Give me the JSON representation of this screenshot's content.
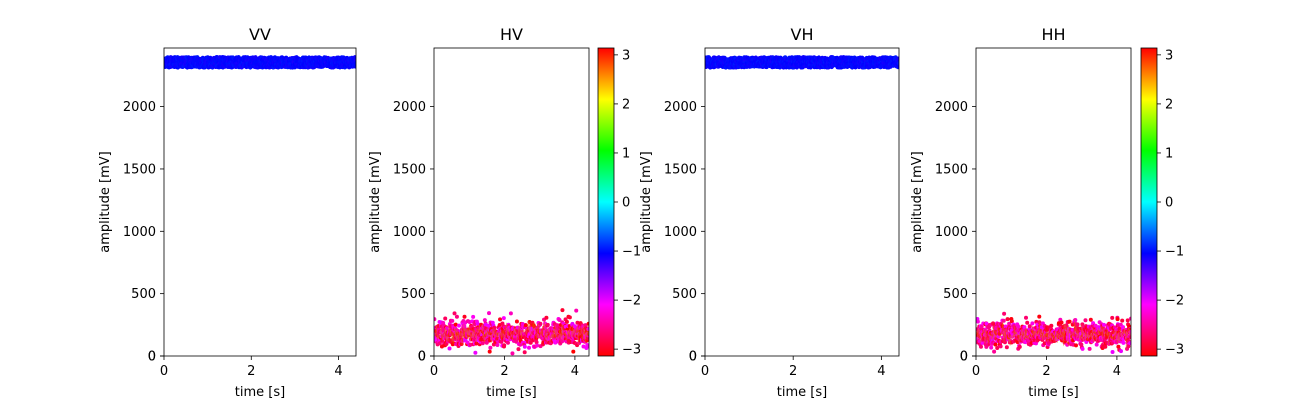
{
  "chart_data": [
    {
      "type": "scatter",
      "title": "VV",
      "xlabel": "time [s]",
      "ylabel": "amplitude [mV]",
      "xlim": [
        0,
        4.4
      ],
      "ylim": [
        0,
        2470
      ],
      "xticks": [
        0,
        2,
        4
      ],
      "yticks": [
        0,
        500,
        1000,
        1500,
        2000
      ],
      "series": [
        {
          "x_range": [
            0,
            4.4
          ],
          "y_center": 2355,
          "y_spread": 45,
          "phase_range": [
            -1.15,
            -0.95
          ],
          "point_count": 1200
        }
      ],
      "colorbar": null
    },
    {
      "type": "scatter",
      "title": "HV",
      "xlabel": "time [s]",
      "ylabel": "amplitude [mV]",
      "xlim": [
        0,
        4.4
      ],
      "ylim": [
        0,
        2470
      ],
      "xticks": [
        0,
        2,
        4
      ],
      "yticks": [
        0,
        500,
        1000,
        1500,
        2000
      ],
      "series": [
        {
          "x_range": [
            0,
            4.4
          ],
          "y_center": 180,
          "y_spread": 110,
          "phase_range": [
            -3.14,
            -2.0
          ],
          "point_count": 900
        }
      ],
      "colorbar": {
        "range": [
          -3.14,
          3.14
        ],
        "ticks": [
          3,
          2,
          1,
          0,
          -1,
          -2,
          -3
        ],
        "tick_labels": [
          "3",
          "2",
          "1",
          "0",
          "−1",
          "−2",
          "−3"
        ],
        "colormap": "hsv"
      }
    },
    {
      "type": "scatter",
      "title": "VH",
      "xlabel": "time [s]",
      "ylabel": "amplitude [mV]",
      "xlim": [
        0,
        4.4
      ],
      "ylim": [
        0,
        2470
      ],
      "xticks": [
        0,
        2,
        4
      ],
      "yticks": [
        0,
        500,
        1000,
        1500,
        2000
      ],
      "series": [
        {
          "x_range": [
            0,
            4.4
          ],
          "y_center": 2355,
          "y_spread": 45,
          "phase_range": [
            -1.15,
            -0.95
          ],
          "point_count": 1200
        }
      ],
      "colorbar": null
    },
    {
      "type": "scatter",
      "title": "HH",
      "xlabel": "time [s]",
      "ylabel": "amplitude [mV]",
      "xlim": [
        0,
        4.4
      ],
      "ylim": [
        0,
        2470
      ],
      "xticks": [
        0,
        2,
        4
      ],
      "yticks": [
        0,
        500,
        1000,
        1500,
        2000
      ],
      "series": [
        {
          "x_range": [
            0,
            4.4
          ],
          "y_center": 175,
          "y_spread": 110,
          "phase_range": [
            -3.14,
            -2.0
          ],
          "point_count": 900
        }
      ],
      "colorbar": {
        "range": [
          -3.14,
          3.14
        ],
        "ticks": [
          3,
          2,
          1,
          0,
          -1,
          -2,
          -3
        ],
        "tick_labels": [
          "3",
          "2",
          "1",
          "0",
          "−1",
          "−2",
          "−3"
        ],
        "colormap": "hsv"
      }
    }
  ]
}
